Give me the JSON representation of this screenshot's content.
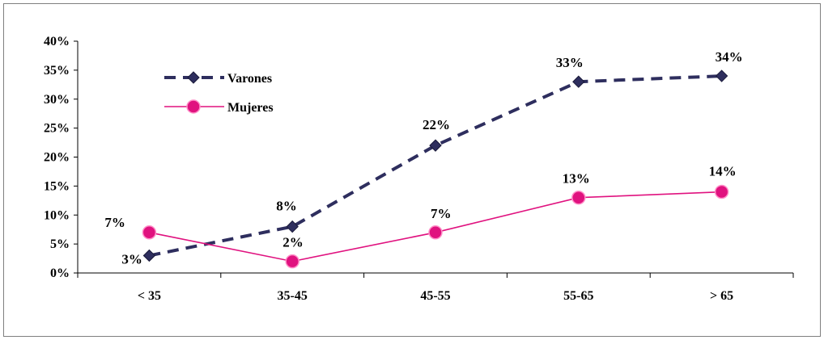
{
  "chart_data": {
    "type": "line",
    "title": "",
    "xlabel": "",
    "ylabel": "",
    "categories": [
      "< 35",
      "35-45",
      "45-55",
      "55-65",
      "> 65"
    ],
    "ylim": [
      0,
      40
    ],
    "yticks": [
      "0%",
      "5%",
      "10%",
      "15%",
      "20%",
      "25%",
      "30%",
      "35%",
      "40%"
    ],
    "ytick_values": [
      0,
      5,
      10,
      15,
      20,
      25,
      30,
      35,
      40
    ],
    "grid": false,
    "legend_position": "top-left",
    "series": [
      {
        "name": "Varones",
        "values": [
          3,
          8,
          22,
          33,
          34
        ],
        "labels": [
          "3%",
          "8%",
          "22%",
          "33%",
          "34%"
        ],
        "color": "#2e2e5e",
        "style": "dashed",
        "marker": "diamond"
      },
      {
        "name": "Mujeres",
        "values": [
          7,
          2,
          7,
          13,
          14
        ],
        "labels": [
          "7%",
          "2%",
          "7%",
          "13%",
          "14%"
        ],
        "color": "#e0127f",
        "style": "solid",
        "marker": "circle"
      }
    ]
  }
}
